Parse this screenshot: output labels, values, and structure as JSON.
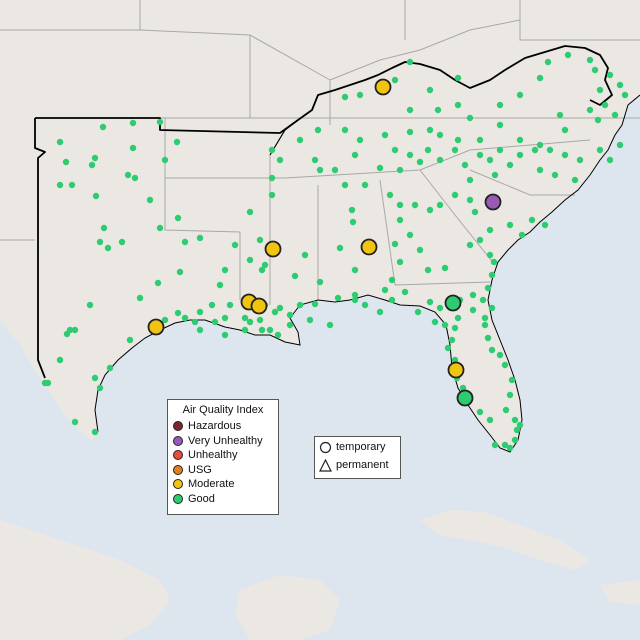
{
  "legend": {
    "title": "Air Quality Index",
    "categories": [
      {
        "label": "Hazardous",
        "color": "#7e2530"
      },
      {
        "label": "Very Unhealthy",
        "color": "#9b59b6"
      },
      {
        "label": "Unhealthy",
        "color": "#e74c3c"
      },
      {
        "label": "USG",
        "color": "#e67e22"
      },
      {
        "label": "Moderate",
        "color": "#f1c40f"
      },
      {
        "label": "Good",
        "color": "#2ecc71"
      }
    ]
  },
  "monitor_type_legend": {
    "temporary": "temporary",
    "permanent": "permanent"
  },
  "colors": {
    "ocean": "#dde6ef",
    "land": "#ebe7e2",
    "region_border": "#000000",
    "state_border": "#a8a8a8",
    "good": "#2ecc71",
    "moderate": "#f1c40f",
    "very_unhealthy": "#9b59b6"
  }
}
